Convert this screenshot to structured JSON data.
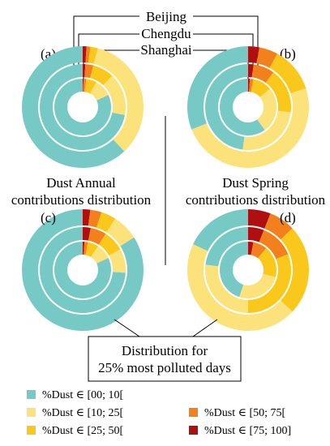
{
  "chart_data": {
    "type": "pie",
    "ring_order_outer_to_inner": [
      "Beijing",
      "Chengdu",
      "Shanghai"
    ],
    "city_labels": [
      "Beijing",
      "Chengdu",
      "Shanghai"
    ],
    "class_order": [
      "[00; 10[",
      "[10; 25[",
      "[25; 50[",
      "[50; 75[",
      "[75; 100]"
    ],
    "colors": [
      "#77c9c5",
      "#fbe27a",
      "#f9c81b",
      "#f2801d",
      "#b00f12"
    ],
    "legend": [
      "%Dust ∈ [00; 10[",
      "%Dust ∈ [10; 25[",
      "%Dust ∈ [25; 50[",
      "%Dust ∈ [50; 75[",
      "%Dust ∈ [75; 100]"
    ],
    "captions": {
      "annual": [
        "Dust Annual",
        "contributions distribution"
      ],
      "spring": [
        "Dust Spring",
        "contributions distribution"
      ],
      "polluted": [
        "Distribution for",
        "25% most polluted days"
      ]
    },
    "charts": [
      {
        "panel": "(a)",
        "period": "annual",
        "rings": [
          {
            "city": "Beijing",
            "values": [
              62,
              34,
              2,
              1,
              1
            ]
          },
          {
            "city": "Chengdu",
            "values": [
              72,
              16,
              8,
              3,
              1
            ]
          },
          {
            "city": "Shanghai",
            "values": [
              82,
              10,
              6,
              1.5,
              0.5
            ]
          }
        ]
      },
      {
        "panel": "(b)",
        "period": "spring",
        "rings": [
          {
            "city": "Beijing",
            "values": [
              31,
              49,
              12,
              5,
              3
            ]
          },
          {
            "city": "Chengdu",
            "values": [
              48,
              25,
              17,
              8,
              2
            ]
          },
          {
            "city": "Shanghai",
            "values": [
              60,
              26,
              11,
              2,
              1
            ]
          }
        ]
      },
      {
        "panel": "(c)",
        "period": "annual, 25% most polluted days",
        "rings": [
          {
            "city": "Beijing",
            "values": [
              84,
              7,
              4,
              3,
              2
            ]
          },
          {
            "city": "Chengdu",
            "values": [
              74,
              9,
              8,
              6,
              3
            ]
          },
          {
            "city": "Shanghai",
            "values": [
              82,
              9,
              6,
              2,
              1
            ]
          }
        ]
      },
      {
        "panel": "(d)",
        "period": "spring, 25% most polluted days",
        "rings": [
          {
            "city": "Beijing",
            "values": [
              18,
              45,
              24,
              7,
              6
            ]
          },
          {
            "city": "Chengdu",
            "values": [
              23,
              27,
              31,
              13,
              6
            ]
          },
          {
            "city": "Shanghai",
            "values": [
              45,
              26,
              18,
              8,
              3
            ]
          }
        ]
      }
    ]
  }
}
